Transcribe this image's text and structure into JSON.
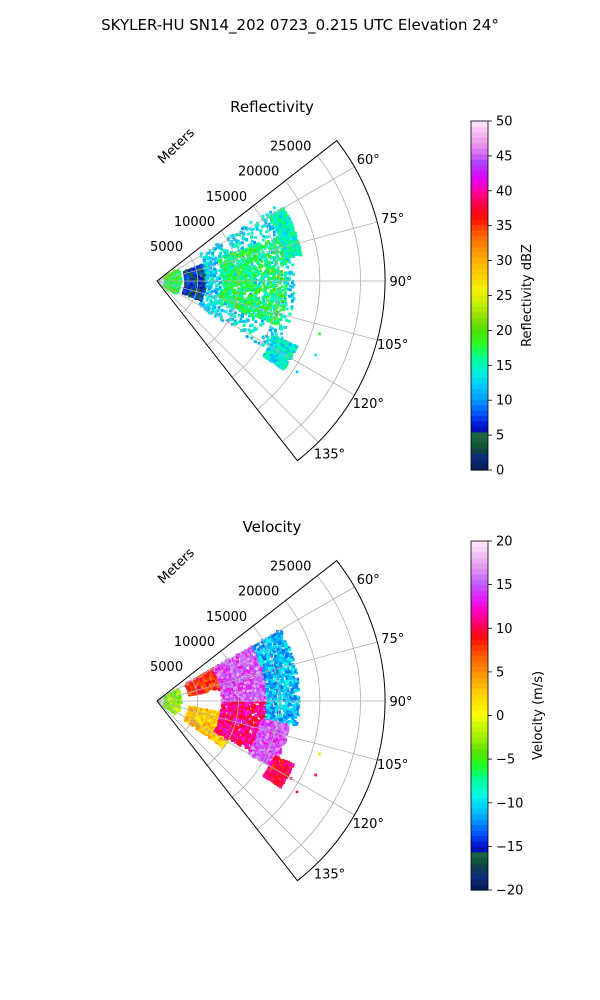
{
  "figure": {
    "title": "SKYLER-HU  SN14_202  0723_0.215 UTC Elevation 24°"
  },
  "chart_data": [
    {
      "type": "heatmap",
      "projection": "polar-sector",
      "title": "Reflectivity",
      "radial_axis_label": "Meters",
      "radial_ticks": [
        5000,
        10000,
        15000,
        20000,
        25000
      ],
      "radial_tick_labels": [
        "5000",
        "10000",
        "15000",
        "20000",
        "25000"
      ],
      "rmax": 28000,
      "theta_range_deg": [
        52,
        142
      ],
      "theta_ticks_deg": [
        60,
        75,
        90,
        105,
        120,
        135
      ],
      "theta_tick_labels": [
        "60°",
        "75°",
        "90°",
        "105°",
        "120°",
        "135°"
      ],
      "grid": true,
      "colorbar": {
        "label": "Reflectivity dBZ",
        "min": 0,
        "max": 50,
        "ticks": [
          0,
          5,
          10,
          15,
          20,
          25,
          30,
          35,
          40,
          45,
          50
        ],
        "tick_labels": [
          "0",
          "5",
          "10",
          "15",
          "20",
          "25",
          "30",
          "35",
          "40",
          "45",
          "50"
        ]
      },
      "echo_regions": [
        {
          "r_min": 1000,
          "r_max": 3000,
          "theta_min": 60,
          "theta_max": 125,
          "value": 18
        },
        {
          "r_min": 3500,
          "r_max": 6000,
          "theta_min": 70,
          "theta_max": 115,
          "value": 6
        },
        {
          "r_min": 6000,
          "r_max": 17000,
          "theta_min": 58,
          "theta_max": 122,
          "value": 13
        },
        {
          "r_min": 8000,
          "r_max": 16000,
          "theta_min": 70,
          "theta_max": 110,
          "value": 17
        },
        {
          "r_min": 16000,
          "r_max": 18000,
          "theta_min": 60,
          "theta_max": 80,
          "value": 15
        },
        {
          "r_min": 16000,
          "r_max": 19000,
          "theta_min": 115,
          "theta_max": 125,
          "value": 14
        }
      ],
      "speckles": [
        {
          "r": 21500,
          "theta": 115,
          "value": 14
        },
        {
          "r": 19000,
          "theta": 120,
          "value": 14
        },
        {
          "r": 21000,
          "theta": 108,
          "value": 18
        },
        {
          "r": 20500,
          "theta": 123,
          "value": 12
        }
      ]
    },
    {
      "type": "heatmap",
      "projection": "polar-sector",
      "title": "Velocity",
      "radial_axis_label": "Meters",
      "radial_ticks": [
        5000,
        10000,
        15000,
        20000,
        25000
      ],
      "radial_tick_labels": [
        "5000",
        "10000",
        "15000",
        "20000",
        "25000"
      ],
      "rmax": 28000,
      "theta_range_deg": [
        52,
        142
      ],
      "theta_ticks_deg": [
        60,
        75,
        90,
        105,
        120,
        135
      ],
      "theta_tick_labels": [
        "60°",
        "75°",
        "90°",
        "105°",
        "120°",
        "135°"
      ],
      "grid": true,
      "colorbar": {
        "label": "Velocity (m/s)",
        "min": -20,
        "max": 20,
        "ticks": [
          -20,
          -15,
          -10,
          -5,
          0,
          5,
          10,
          15,
          20
        ],
        "tick_labels": [
          "−20",
          "−15",
          "−10",
          "−5",
          "0",
          "5",
          "10",
          "15",
          "20"
        ]
      },
      "echo_regions": [
        {
          "r_min": 1000,
          "r_max": 3000,
          "theta_min": 60,
          "theta_max": 125,
          "value": -3
        },
        {
          "r_min": 4000,
          "r_max": 9000,
          "theta_min": 60,
          "theta_max": 80,
          "value": 8
        },
        {
          "r_min": 4000,
          "r_max": 10000,
          "theta_min": 100,
          "theta_max": 125,
          "value": 3
        },
        {
          "r_min": 8000,
          "r_max": 14000,
          "theta_min": 90,
          "theta_max": 118,
          "value": 11
        },
        {
          "r_min": 8000,
          "r_max": 13500,
          "theta_min": 60,
          "theta_max": 90,
          "value": 15
        },
        {
          "r_min": 13500,
          "r_max": 17500,
          "theta_min": 60,
          "theta_max": 100,
          "value": -11
        },
        {
          "r_min": 13000,
          "r_max": 16500,
          "theta_min": 100,
          "theta_max": 120,
          "value": 15
        },
        {
          "r_min": 16000,
          "r_max": 18500,
          "theta_min": 115,
          "theta_max": 125,
          "value": 10
        }
      ],
      "speckles": [
        {
          "r": 21500,
          "theta": 115,
          "value": 10
        },
        {
          "r": 19000,
          "theta": 120,
          "value": 10
        },
        {
          "r": 21000,
          "theta": 108,
          "value": 2
        },
        {
          "r": 20500,
          "theta": 123,
          "value": 10
        }
      ]
    }
  ]
}
